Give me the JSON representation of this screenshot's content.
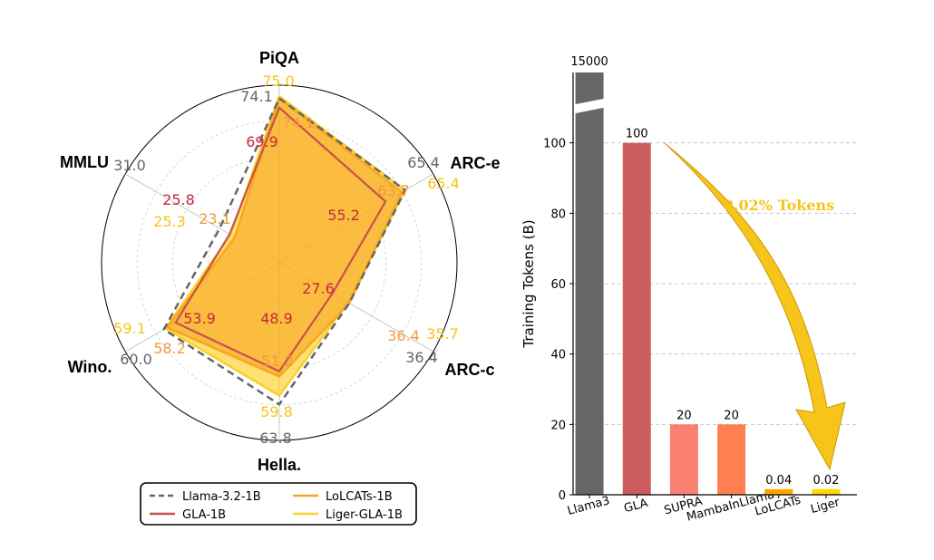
{
  "chart_data": [
    {
      "type": "radar",
      "axes": [
        "PiQA",
        "ARC-e",
        "ARC-c",
        "Hella.",
        "Wino.",
        "MMLU"
      ],
      "series": [
        {
          "name": "Llama-3.2-1B",
          "color": "#666666",
          "style": "dashed",
          "values": [
            74.1,
            65.4,
            36.4,
            63.8,
            60.0,
            31.0
          ],
          "labels": [
            "74.1",
            "65.4",
            "36.4",
            "63.8",
            "60.0",
            "31.0"
          ]
        },
        {
          "name": "GLA-1B",
          "color": "#c8504f",
          "style": "solid",
          "values": [
            69.9,
            55.2,
            27.6,
            48.9,
            53.9,
            25.8
          ],
          "labels": [
            "69.9",
            "55.2",
            "27.6",
            "48.9",
            "53.9",
            "25.8"
          ]
        },
        {
          "name": "LoLCATs-1B",
          "color": "#f5a623",
          "style": "solid",
          "values": [
            74.1,
            63.7,
            36.4,
            51.2,
            58.2,
            23.1
          ],
          "labels": [
            "74.1",
            "63.7",
            "36.4",
            "51.2",
            "58.2",
            "23.1"
          ]
        },
        {
          "name": "Liger-GLA-1B",
          "color": "#f7d12a",
          "style": "solid",
          "values": [
            75.0,
            65.4,
            35.7,
            59.8,
            59.1,
            25.3
          ],
          "labels": [
            "75.0",
            "65.4",
            "35.7",
            "59.8",
            "59.1",
            "25.3"
          ]
        }
      ],
      "legend": {
        "position": "bottom",
        "entries": [
          "Llama-3.2-1B",
          "LoLCATs-1B",
          "GLA-1B",
          "Liger-GLA-1B"
        ]
      }
    },
    {
      "type": "bar",
      "categories": [
        "Llama3",
        "GLA",
        "SUPRA",
        "MambaInLlama",
        "LoLCATs",
        "Liger"
      ],
      "values": [
        15000,
        100,
        20,
        20,
        0.04,
        0.02
      ],
      "value_labels": [
        "15000",
        "100",
        "20",
        "20",
        "0.04",
        "0.02"
      ],
      "colors": [
        "#666666",
        "#cd5c5c",
        "#fa8072",
        "#ff7f50",
        "#ffa500",
        "#ffd700"
      ],
      "ylabel": "Training Tokens (B)",
      "ylim": [
        0,
        120
      ],
      "yticks": [
        "0",
        "20",
        "40",
        "60",
        "80",
        "100"
      ],
      "annotation": "0.02% Tokens",
      "grid": "horizontal dashed"
    }
  ]
}
